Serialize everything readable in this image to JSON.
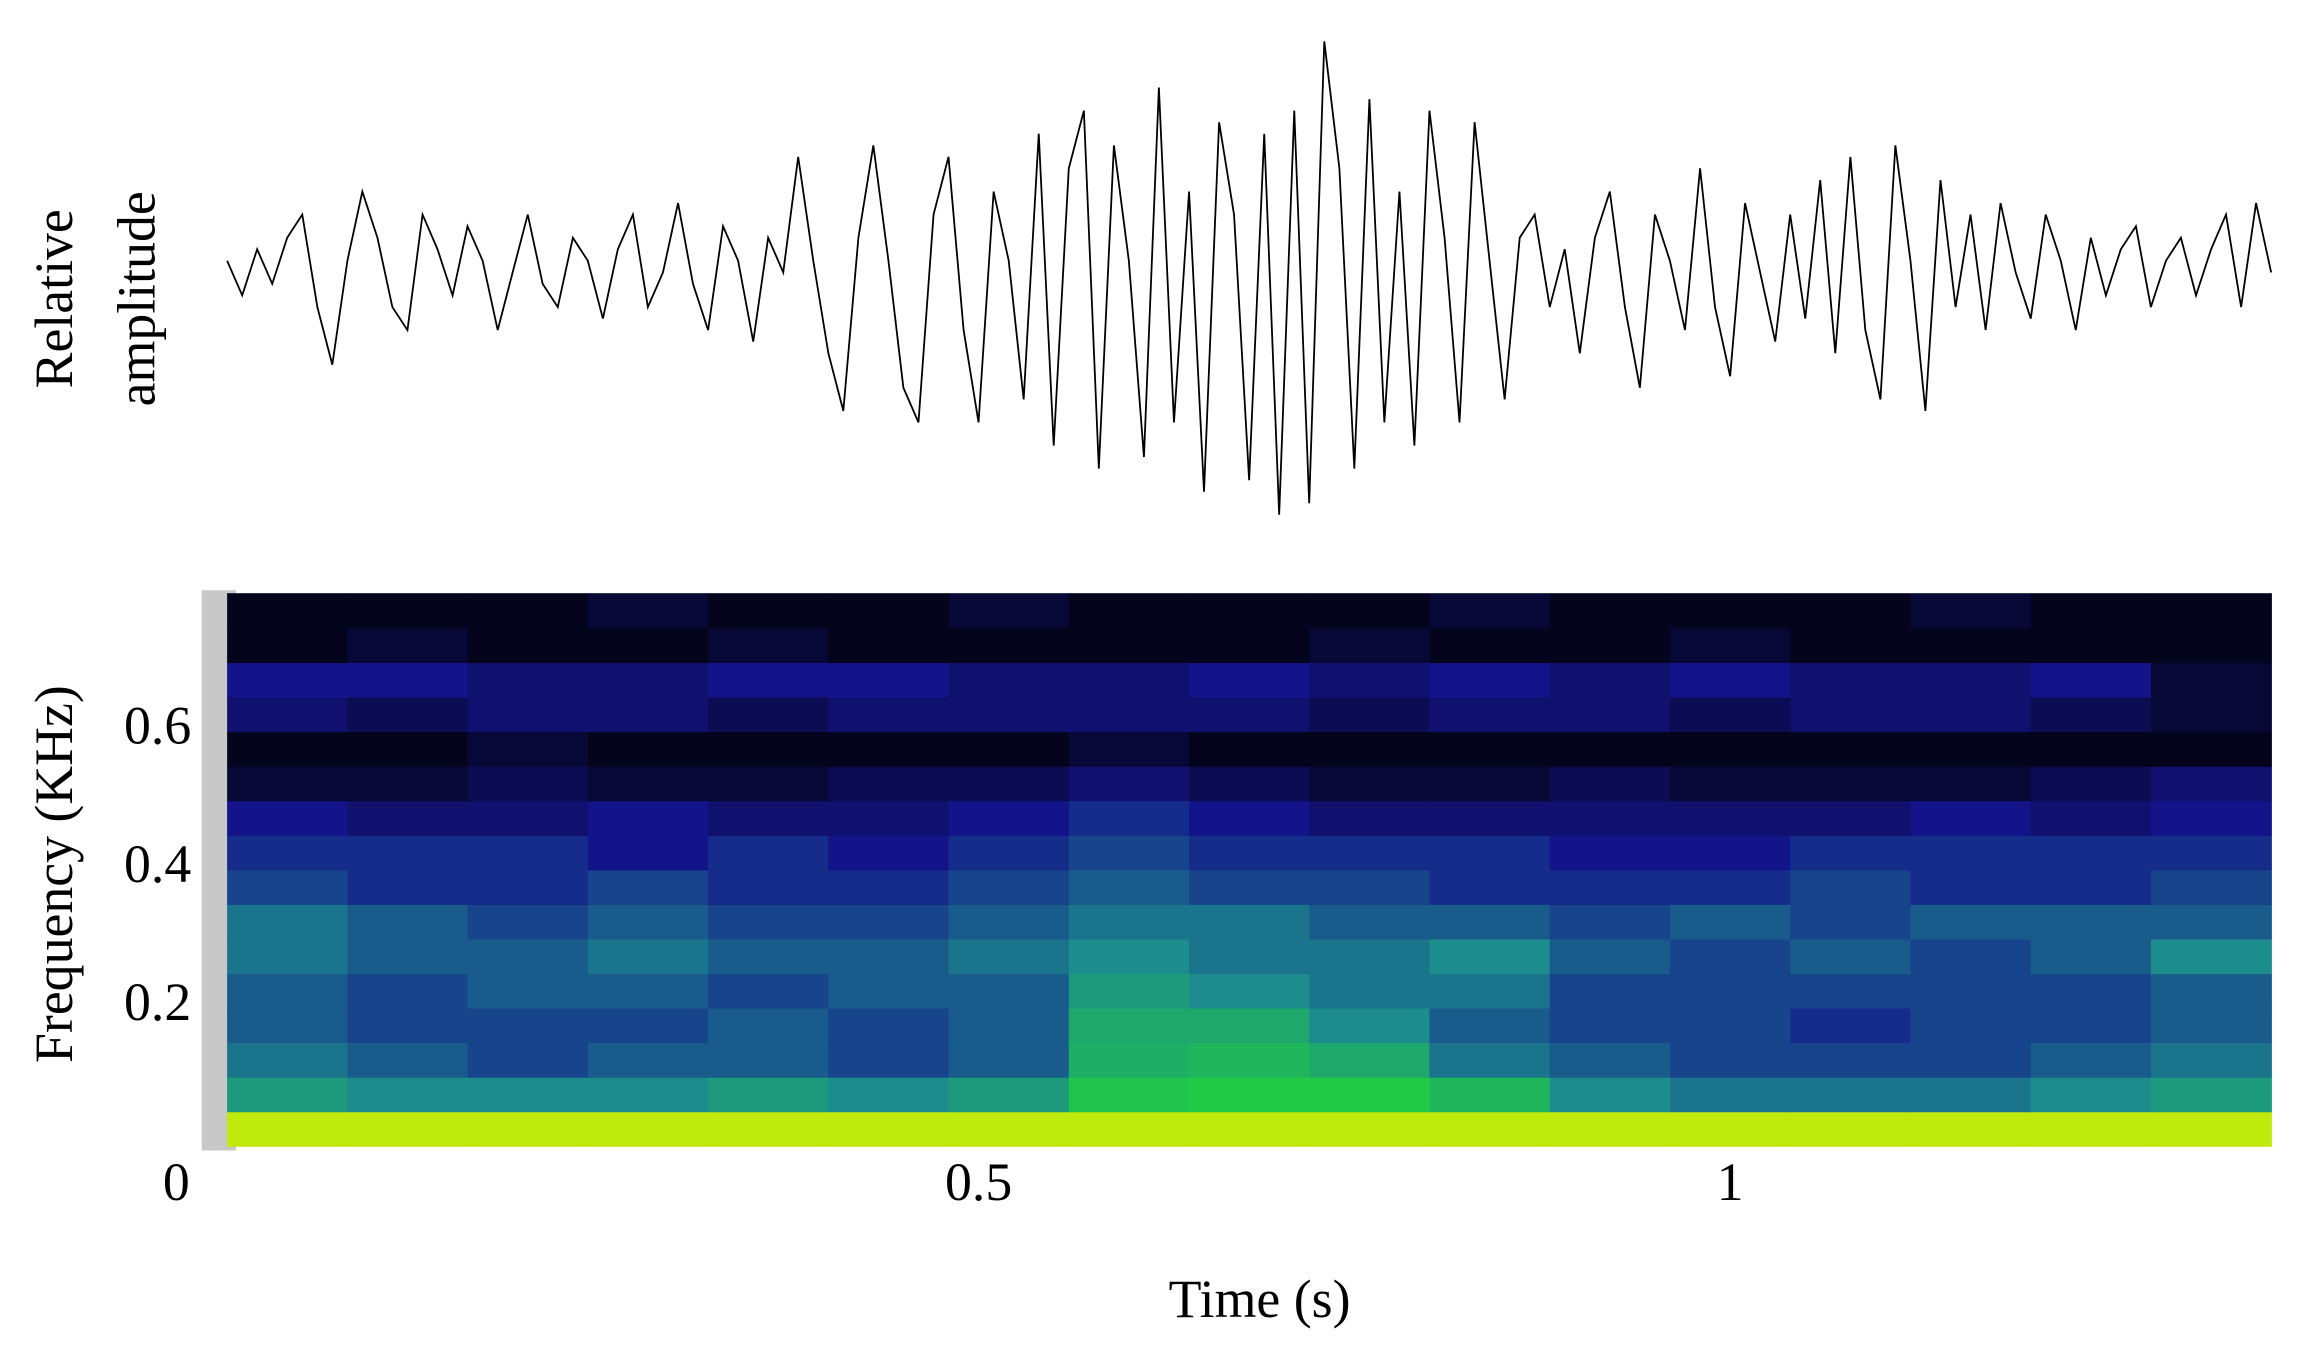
{
  "chart_data": [
    {
      "type": "line",
      "y_label": [
        "Relative",
        "amplitude"
      ],
      "color": "#000000",
      "xlim": [
        0,
        1.36
      ],
      "ylim": [
        -1.1,
        1.1
      ],
      "x": [
        0,
        0.01,
        0.02,
        0.03,
        0.04,
        0.05,
        0.06,
        0.07,
        0.08,
        0.09,
        0.1,
        0.11,
        0.12,
        0.13,
        0.14,
        0.15,
        0.16,
        0.17,
        0.18,
        0.19,
        0.2,
        0.21,
        0.22,
        0.23,
        0.24,
        0.25,
        0.26,
        0.27,
        0.28,
        0.29,
        0.3,
        0.31,
        0.32,
        0.33,
        0.34,
        0.35,
        0.36,
        0.37,
        0.38,
        0.39,
        0.4,
        0.41,
        0.42,
        0.43,
        0.44,
        0.45,
        0.46,
        0.47,
        0.48,
        0.49,
        0.5,
        0.51,
        0.52,
        0.53,
        0.54,
        0.55,
        0.56,
        0.57,
        0.58,
        0.59,
        0.6,
        0.61,
        0.62,
        0.63,
        0.64,
        0.65,
        0.66,
        0.67,
        0.68,
        0.69,
        0.7,
        0.71,
        0.72,
        0.73,
        0.74,
        0.75,
        0.76,
        0.77,
        0.78,
        0.79,
        0.8,
        0.81,
        0.82,
        0.83,
        0.84,
        0.85,
        0.86,
        0.87,
        0.88,
        0.89,
        0.9,
        0.91,
        0.92,
        0.93,
        0.94,
        0.95,
        0.96,
        0.97,
        0.98,
        0.99,
        1,
        1.01,
        1.02,
        1.03,
        1.04,
        1.05,
        1.06,
        1.07,
        1.08,
        1.09,
        1.1,
        1.11,
        1.12,
        1.13,
        1.14,
        1.15,
        1.16,
        1.17,
        1.18,
        1.19,
        1.2,
        1.21,
        1.22,
        1.23,
        1.24,
        1.25,
        1.26,
        1.27,
        1.28,
        1.29,
        1.3,
        1.31,
        1.32,
        1.33,
        1.34,
        1.35,
        1.36
      ],
      "values": [
        0.1,
        -0.05,
        0.15,
        0.0,
        0.2,
        0.3,
        -0.1,
        -0.35,
        0.1,
        0.4,
        0.2,
        -0.1,
        -0.2,
        0.3,
        0.15,
        -0.05,
        0.25,
        0.1,
        -0.2,
        0.05,
        0.3,
        0.0,
        -0.1,
        0.2,
        0.1,
        -0.15,
        0.15,
        0.3,
        -0.1,
        0.05,
        0.35,
        0.0,
        -0.2,
        0.25,
        0.1,
        -0.25,
        0.2,
        0.05,
        0.55,
        0.1,
        -0.3,
        -0.55,
        0.2,
        0.6,
        0.1,
        -0.45,
        -0.6,
        0.3,
        0.55,
        -0.2,
        -0.6,
        0.4,
        0.1,
        -0.5,
        0.65,
        -0.7,
        0.5,
        0.75,
        -0.8,
        0.6,
        0.1,
        -0.75,
        0.85,
        -0.6,
        0.4,
        -0.9,
        0.7,
        0.3,
        -0.85,
        0.65,
        -1.0,
        0.75,
        -0.95,
        1.05,
        0.5,
        -0.8,
        0.8,
        -0.6,
        0.4,
        -0.7,
        0.75,
        0.2,
        -0.6,
        0.7,
        0.1,
        -0.5,
        0.2,
        0.3,
        -0.1,
        0.15,
        -0.3,
        0.2,
        0.4,
        -0.1,
        -0.45,
        0.3,
        0.1,
        -0.2,
        0.5,
        -0.1,
        -0.4,
        0.35,
        0.05,
        -0.25,
        0.3,
        -0.15,
        0.45,
        -0.3,
        0.55,
        -0.2,
        -0.5,
        0.6,
        0.1,
        -0.55,
        0.45,
        -0.1,
        0.3,
        -0.2,
        0.35,
        0.05,
        -0.15,
        0.3,
        0.1,
        -0.2,
        0.2,
        -0.05,
        0.15,
        0.25,
        -0.1,
        0.1,
        0.2,
        -0.05,
        0.15,
        0.3,
        -0.1,
        0.35,
        0.05
      ]
    },
    {
      "type": "heatmap",
      "x_label": "Time (s)",
      "y_label": "Frequency (KHz)",
      "xlim": [
        0,
        1.36
      ],
      "ylim": [
        0,
        0.8
      ],
      "xticks": [
        0,
        0.5,
        1
      ],
      "yticks": [
        0.2,
        0.4,
        0.6
      ],
      "colormap": [
        "#000000",
        "#14148a",
        "#1c8c8c",
        "#22d23c",
        "#e6f000"
      ],
      "x_bins": [
        0,
        0.08,
        0.16,
        0.24,
        0.32,
        0.4,
        0.48,
        0.56,
        0.64,
        0.72,
        0.8,
        0.88,
        0.96,
        1.04,
        1.12,
        1.2,
        1.28,
        1.36
      ],
      "y_bins": [
        0,
        0.05,
        0.1,
        0.15,
        0.2,
        0.25,
        0.3,
        0.35,
        0.4,
        0.45,
        0.5,
        0.55,
        0.6,
        0.65,
        0.7,
        0.75,
        0.8
      ],
      "values": [
        [
          0.95,
          0.95,
          0.95,
          0.95,
          0.95,
          0.95,
          0.95,
          0.95,
          0.95,
          0.95,
          0.95,
          0.95,
          0.95,
          0.95,
          0.95,
          0.95,
          0.95
        ],
        [
          0.55,
          0.5,
          0.5,
          0.5,
          0.55,
          0.5,
          0.55,
          0.7,
          0.72,
          0.72,
          0.65,
          0.5,
          0.45,
          0.45,
          0.45,
          0.5,
          0.55
        ],
        [
          0.45,
          0.4,
          0.35,
          0.4,
          0.4,
          0.35,
          0.4,
          0.62,
          0.65,
          0.6,
          0.45,
          0.4,
          0.35,
          0.35,
          0.35,
          0.4,
          0.45
        ],
        [
          0.4,
          0.35,
          0.35,
          0.35,
          0.4,
          0.35,
          0.4,
          0.6,
          0.6,
          0.5,
          0.4,
          0.35,
          0.35,
          0.3,
          0.35,
          0.35,
          0.4
        ],
        [
          0.4,
          0.35,
          0.4,
          0.4,
          0.35,
          0.4,
          0.4,
          0.55,
          0.5,
          0.45,
          0.45,
          0.35,
          0.35,
          0.35,
          0.35,
          0.35,
          0.4
        ],
        [
          0.45,
          0.4,
          0.4,
          0.45,
          0.4,
          0.4,
          0.45,
          0.5,
          0.45,
          0.45,
          0.5,
          0.4,
          0.35,
          0.4,
          0.35,
          0.4,
          0.5
        ],
        [
          0.45,
          0.4,
          0.35,
          0.4,
          0.35,
          0.35,
          0.4,
          0.45,
          0.45,
          0.4,
          0.4,
          0.35,
          0.4,
          0.35,
          0.4,
          0.4,
          0.4
        ],
        [
          0.35,
          0.3,
          0.3,
          0.35,
          0.3,
          0.3,
          0.35,
          0.4,
          0.35,
          0.35,
          0.3,
          0.3,
          0.3,
          0.35,
          0.3,
          0.3,
          0.35
        ],
        [
          0.3,
          0.3,
          0.3,
          0.25,
          0.3,
          0.25,
          0.3,
          0.35,
          0.3,
          0.3,
          0.3,
          0.25,
          0.25,
          0.3,
          0.3,
          0.3,
          0.3
        ],
        [
          0.25,
          0.2,
          0.2,
          0.25,
          0.2,
          0.2,
          0.25,
          0.3,
          0.25,
          0.2,
          0.2,
          0.2,
          0.2,
          0.2,
          0.25,
          0.2,
          0.25
        ],
        [
          0.1,
          0.1,
          0.15,
          0.1,
          0.1,
          0.15,
          0.15,
          0.2,
          0.15,
          0.1,
          0.1,
          0.15,
          0.1,
          0.1,
          0.1,
          0.15,
          0.2
        ],
        [
          0.05,
          0.05,
          0.1,
          0.05,
          0.05,
          0.05,
          0.05,
          0.1,
          0.05,
          0.05,
          0.05,
          0.05,
          0.05,
          0.05,
          0.05,
          0.05,
          0.05
        ],
        [
          0.2,
          0.15,
          0.2,
          0.2,
          0.15,
          0.2,
          0.2,
          0.2,
          0.2,
          0.15,
          0.2,
          0.2,
          0.15,
          0.2,
          0.2,
          0.15,
          0.1
        ],
        [
          0.25,
          0.25,
          0.2,
          0.2,
          0.25,
          0.25,
          0.2,
          0.2,
          0.25,
          0.2,
          0.25,
          0.2,
          0.25,
          0.2,
          0.2,
          0.25,
          0.1
        ],
        [
          0.05,
          0.1,
          0.05,
          0.05,
          0.1,
          0.05,
          0.05,
          0.05,
          0.05,
          0.1,
          0.05,
          0.05,
          0.1,
          0.05,
          0.05,
          0.05,
          0.05
        ],
        [
          0.05,
          0.05,
          0.05,
          0.1,
          0.05,
          0.05,
          0.1,
          0.05,
          0.05,
          0.05,
          0.1,
          0.05,
          0.05,
          0.05,
          0.1,
          0.05,
          0.05
        ]
      ]
    }
  ]
}
